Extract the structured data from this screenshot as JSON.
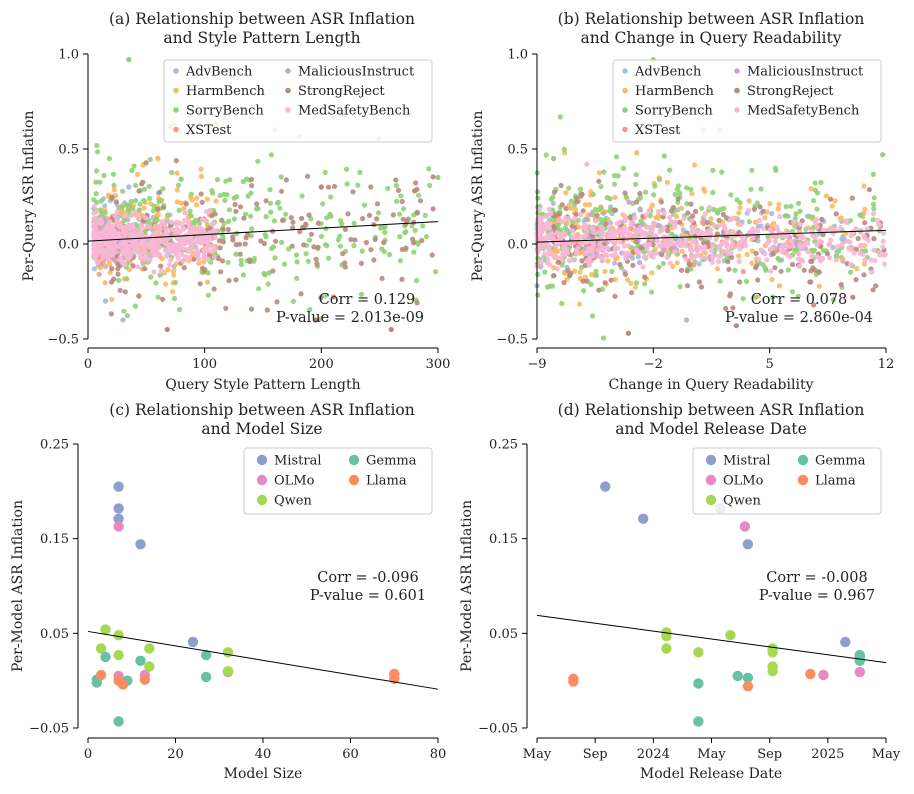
{
  "chart_data": [
    {
      "id": "a",
      "type": "scatter",
      "title": [
        "(a) Relationship between ASR Inflation",
        "and Style Pattern Length"
      ],
      "xlabel": "Query Style Pattern Length",
      "ylabel": "Per-Query ASR Inflation",
      "xlim": [
        0,
        300
      ],
      "ylim": [
        -0.5,
        1.0
      ],
      "xticks": [
        0,
        100,
        200,
        300
      ],
      "xtick_labels": [
        "0",
        "100",
        "200",
        "300"
      ],
      "yticks": [
        -0.5,
        0.0,
        0.5,
        1.0
      ],
      "ytick_labels": [
        "−0.5",
        "0.0",
        "0.5",
        "1.0"
      ],
      "legend": {
        "position": "top-right",
        "columns": [
          [
            "AdvBench",
            "HarmBench",
            "SorryBench",
            "XSTest"
          ],
          [
            "MaliciousInstruct",
            "StrongReject",
            "MedSafetyBench"
          ]
        ]
      },
      "series": [
        {
          "name": "AdvBench",
          "color": "#a6bddb",
          "n": 150,
          "x_range": [
            5,
            75
          ],
          "y_mean": 0.03,
          "y_sd": 0.08,
          "y_extremes": [
            [
              30,
              -0.4
            ],
            [
              35,
              0.3
            ],
            [
              15,
              -0.3
            ]
          ]
        },
        {
          "name": "HarmBench",
          "color": "#fdb863",
          "n": 220,
          "x_range": [
            10,
            110
          ],
          "y_mean": 0.05,
          "y_sd": 0.13,
          "y_extremes": [
            [
              90,
              0.62
            ],
            [
              110,
              0.63
            ],
            [
              60,
              0.45
            ]
          ]
        },
        {
          "name": "SorryBench",
          "color": "#8fd175",
          "n": 320,
          "x_range": [
            5,
            300
          ],
          "y_mean": 0.06,
          "y_sd": 0.17,
          "y_extremes": [
            [
              35,
              0.97
            ],
            [
              70,
              0.62
            ],
            [
              160,
              0.6
            ],
            [
              300,
              0.35
            ]
          ]
        },
        {
          "name": "XSTest",
          "color": "#f4978e",
          "n": 40,
          "x_range": [
            8,
            30
          ],
          "y_mean": 0.0,
          "y_sd": 0.06,
          "y_extremes": []
        },
        {
          "name": "MaliciousInstruct",
          "color": "#c5a3d5",
          "n": 60,
          "x_range": [
            10,
            40
          ],
          "y_mean": 0.03,
          "y_sd": 0.06,
          "y_extremes": []
        },
        {
          "name": "StrongReject",
          "color": "#b9897e",
          "n": 210,
          "x_range": [
            20,
            300
          ],
          "y_mean": 0.02,
          "y_sd": 0.15,
          "y_extremes": [
            [
              200,
              0.3
            ],
            [
              280,
              0.28
            ],
            [
              195,
              -0.4
            ],
            [
              260,
              -0.45
            ],
            [
              68,
              -0.45
            ]
          ]
        },
        {
          "name": "MedSafetyBench",
          "color": "#f7b7d4",
          "n": 480,
          "x_range": [
            5,
            110
          ],
          "y_mean": 0.02,
          "y_sd": 0.06,
          "y_extremes": []
        }
      ],
      "trend": {
        "x": [
          0,
          300
        ],
        "y": [
          0.015,
          0.118
        ]
      },
      "annotation": {
        "corr": "Corr = 0.129",
        "pvalue": "P-value = 2.013e-09"
      }
    },
    {
      "id": "b",
      "type": "scatter",
      "title": [
        "(b) Relationship between ASR Inflation",
        "and Change in Query Readability"
      ],
      "xlabel": "Change in Query Readability",
      "ylabel": "Per-Query ASR Inflation",
      "xlim": [
        -9,
        12
      ],
      "ylim": [
        -0.5,
        1.0
      ],
      "xticks": [
        -9,
        -2,
        5,
        12
      ],
      "xtick_labels": [
        "−9",
        "−2",
        "5",
        "12"
      ],
      "yticks": [
        -0.5,
        0.0,
        0.5,
        1.0
      ],
      "ytick_labels": [
        "−0.5",
        "0.0",
        "0.5",
        "1.0"
      ],
      "legend": {
        "position": "top-right",
        "columns": [
          [
            "AdvBench",
            "HarmBench",
            "SorryBench",
            "XSTest"
          ],
          [
            "MaliciousInstruct",
            "StrongReject",
            "MedSafetyBench"
          ]
        ]
      },
      "series": [
        {
          "name": "AdvBench",
          "color": "#a6bddb",
          "n": 150,
          "x_range": [
            -9,
            10
          ],
          "y_mean": 0.03,
          "y_sd": 0.08,
          "y_extremes": [
            [
              -9,
              -0.22
            ],
            [
              0,
              -0.4
            ]
          ]
        },
        {
          "name": "HarmBench",
          "color": "#fdb863",
          "n": 220,
          "x_range": [
            -8,
            11
          ],
          "y_mean": 0.05,
          "y_sd": 0.13,
          "y_extremes": [
            [
              1,
              0.6
            ],
            [
              -3,
              0.48
            ]
          ]
        },
        {
          "name": "SorryBench",
          "color": "#8fd175",
          "n": 320,
          "x_range": [
            -9,
            12
          ],
          "y_mean": 0.06,
          "y_sd": 0.17,
          "y_extremes": [
            [
              -2,
              0.97
            ],
            [
              2,
              0.6
            ],
            [
              11.8,
              0.47
            ],
            [
              -8,
              0.45
            ]
          ]
        },
        {
          "name": "XSTest",
          "color": "#f4978e",
          "n": 40,
          "x_range": [
            -6,
            6
          ],
          "y_mean": 0.0,
          "y_sd": 0.06,
          "y_extremes": []
        },
        {
          "name": "MaliciousInstruct",
          "color": "#c5a3d5",
          "n": 60,
          "x_range": [
            -6,
            8
          ],
          "y_mean": 0.03,
          "y_sd": 0.06,
          "y_extremes": []
        },
        {
          "name": "StrongReject",
          "color": "#b9897e",
          "n": 210,
          "x_range": [
            -8,
            12
          ],
          "y_mean": 0.02,
          "y_sd": 0.15,
          "y_extremes": [
            [
              -3.5,
              -0.47
            ],
            [
              3,
              -0.43
            ],
            [
              10,
              -0.28
            ]
          ]
        },
        {
          "name": "MedSafetyBench",
          "color": "#f7b7d4",
          "n": 480,
          "x_range": [
            -9,
            12
          ],
          "y_mean": 0.02,
          "y_sd": 0.06,
          "y_extremes": [
            [
              -6,
              0.42
            ]
          ]
        }
      ],
      "trend": {
        "x": [
          -9,
          12
        ],
        "y": [
          0.01,
          0.072
        ]
      },
      "annotation": {
        "corr": "Corr = 0.078",
        "pvalue": "P-value = 2.860e-04"
      }
    },
    {
      "id": "c",
      "type": "scatter",
      "title": [
        "(c) Relationship between ASR Inflation",
        "and Model Size"
      ],
      "xlabel": "Model Size",
      "ylabel": "Per-Model ASR Inflation",
      "xlim": [
        0,
        80
      ],
      "ylim": [
        -0.05,
        0.25
      ],
      "xticks": [
        0,
        20,
        40,
        60,
        80
      ],
      "xtick_labels": [
        "0",
        "20",
        "40",
        "60",
        "80"
      ],
      "yticks": [
        -0.05,
        0.05,
        0.15,
        0.25
      ],
      "ytick_labels": [
        "−0.05",
        "0.05",
        "0.15",
        "0.25"
      ],
      "legend": {
        "position": "top-right",
        "columns": [
          [
            "Mistral",
            "OLMo",
            "Qwen"
          ],
          [
            "Gemma",
            "Llama"
          ]
        ]
      },
      "series": [
        {
          "name": "Mistral",
          "color": "#8da0cb",
          "points": [
            [
              7,
              0.205
            ],
            [
              7,
              0.182
            ],
            [
              7,
              0.171
            ],
            [
              12,
              0.144
            ],
            [
              24,
              0.041
            ]
          ]
        },
        {
          "name": "OLMo",
          "color": "#e78ac3",
          "points": [
            [
              7,
              0.163
            ],
            [
              7,
              0.005
            ],
            [
              13,
              0.006
            ],
            [
              32,
              0.009
            ],
            [
              70,
              0.007
            ]
          ]
        },
        {
          "name": "Qwen",
          "color": "#a6d854",
          "points": [
            [
              3,
              0.034
            ],
            [
              4,
              0.054
            ],
            [
              7,
              0.048
            ],
            [
              7,
              0.027
            ],
            [
              14,
              0.034
            ],
            [
              14,
              0.015
            ],
            [
              32,
              0.03
            ],
            [
              32,
              0.01
            ]
          ]
        },
        {
          "name": "Gemma",
          "color": "#66c2a5",
          "points": [
            [
              2,
              -0.002
            ],
            [
              2,
              0.001
            ],
            [
              4,
              0.025
            ],
            [
              7,
              -0.043
            ],
            [
              9,
              0.0
            ],
            [
              12,
              0.021
            ],
            [
              27,
              0.027
            ],
            [
              27,
              0.004
            ]
          ]
        },
        {
          "name": "Llama",
          "color": "#fc8d62",
          "points": [
            [
              3,
              0.006
            ],
            [
              7,
              0.0
            ],
            [
              8,
              -0.004
            ],
            [
              13,
              0.001
            ],
            [
              70,
              0.002
            ],
            [
              70,
              0.007
            ]
          ]
        }
      ],
      "trend": {
        "x": [
          0,
          80
        ],
        "y": [
          0.052,
          -0.009
        ]
      },
      "annotation": {
        "corr": "Corr = -0.096",
        "pvalue": "P-value = 0.601"
      }
    },
    {
      "id": "d",
      "type": "scatter",
      "title": [
        "(d) Relationship between ASR Inflation",
        "and Model Release Date"
      ],
      "xlabel": "Model Release Date",
      "ylabel": "Per-Model ASR Inflation",
      "x_unit": "months since May 2023",
      "xlim": [
        0,
        24
      ],
      "ylim": [
        -0.05,
        0.25
      ],
      "xticks": [
        0,
        4,
        8,
        12,
        16,
        20,
        24
      ],
      "xtick_labels": [
        "May",
        "Sep",
        "2024",
        "May",
        "Sep",
        "2025",
        "May"
      ],
      "yticks": [
        -0.05,
        0.05,
        0.15,
        0.25
      ],
      "ytick_labels": [
        "−0.05",
        "0.05",
        "0.15",
        "0.25"
      ],
      "legend": {
        "position": "top-right",
        "columns": [
          [
            "Mistral",
            "OLMo",
            "Qwen"
          ],
          [
            "Gemma",
            "Llama"
          ]
        ]
      },
      "series": [
        {
          "name": "Mistral",
          "color": "#8da0cb",
          "points": [
            [
              4.7,
              0.205
            ],
            [
              7.3,
              0.171
            ],
            [
              12.6,
              0.182
            ],
            [
              14.5,
              0.144
            ],
            [
              21.2,
              0.041
            ]
          ]
        },
        {
          "name": "OLMo",
          "color": "#e78ac3",
          "points": [
            [
              14.3,
              0.163
            ],
            [
              19.7,
              0.006
            ],
            [
              22.2,
              0.009
            ]
          ]
        },
        {
          "name": "Qwen",
          "color": "#a6d854",
          "points": [
            [
              8.9,
              0.051
            ],
            [
              8.9,
              0.047
            ],
            [
              8.9,
              0.034
            ],
            [
              11.1,
              0.03
            ],
            [
              13.3,
              0.048
            ],
            [
              16.2,
              0.034
            ],
            [
              16.2,
              0.03
            ],
            [
              16.2,
              0.015
            ],
            [
              16.2,
              0.01
            ]
          ]
        },
        {
          "name": "Gemma",
          "color": "#66c2a5",
          "points": [
            [
              11.1,
              -0.003
            ],
            [
              11.1,
              -0.043
            ],
            [
              13.8,
              0.005
            ],
            [
              14.5,
              0.003
            ],
            [
              22.2,
              0.027
            ],
            [
              22.2,
              0.025
            ],
            [
              22.2,
              0.021
            ]
          ]
        },
        {
          "name": "Llama",
          "color": "#fc8d62",
          "points": [
            [
              2.5,
              0.002
            ],
            [
              2.5,
              -0.001
            ],
            [
              14.5,
              -0.006
            ],
            [
              18.8,
              0.007
            ]
          ]
        }
      ],
      "trend": {
        "x": [
          0,
          24
        ],
        "y": [
          0.069,
          0.019
        ]
      },
      "annotation": {
        "corr": "Corr = -0.008",
        "pvalue": "P-value = 0.967"
      }
    }
  ]
}
